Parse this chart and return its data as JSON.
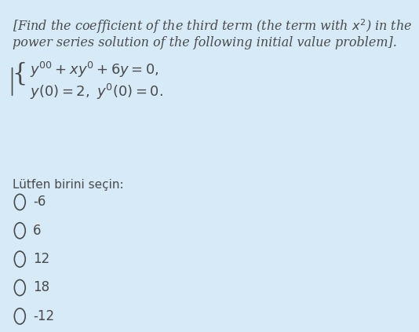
{
  "background_color": "#d6eaf8",
  "text_color": "#4a4a4a",
  "title_line1": "[Find the coefficient of the third term (the term with $x^2$) in the",
  "title_line2": "power series solution of the following initial value problem].",
  "eq1": "$y'' + xy' + 6y = 0,$",
  "eq2": "$y(0) = 2,\\ y'(0) = 0.$",
  "prompt": "Lütfen birini seçin:",
  "options": [
    "-6",
    "6",
    "12",
    "18",
    "-12"
  ],
  "font_size_title": 11.5,
  "font_size_eq": 13,
  "font_size_options": 12,
  "font_size_prompt": 11
}
